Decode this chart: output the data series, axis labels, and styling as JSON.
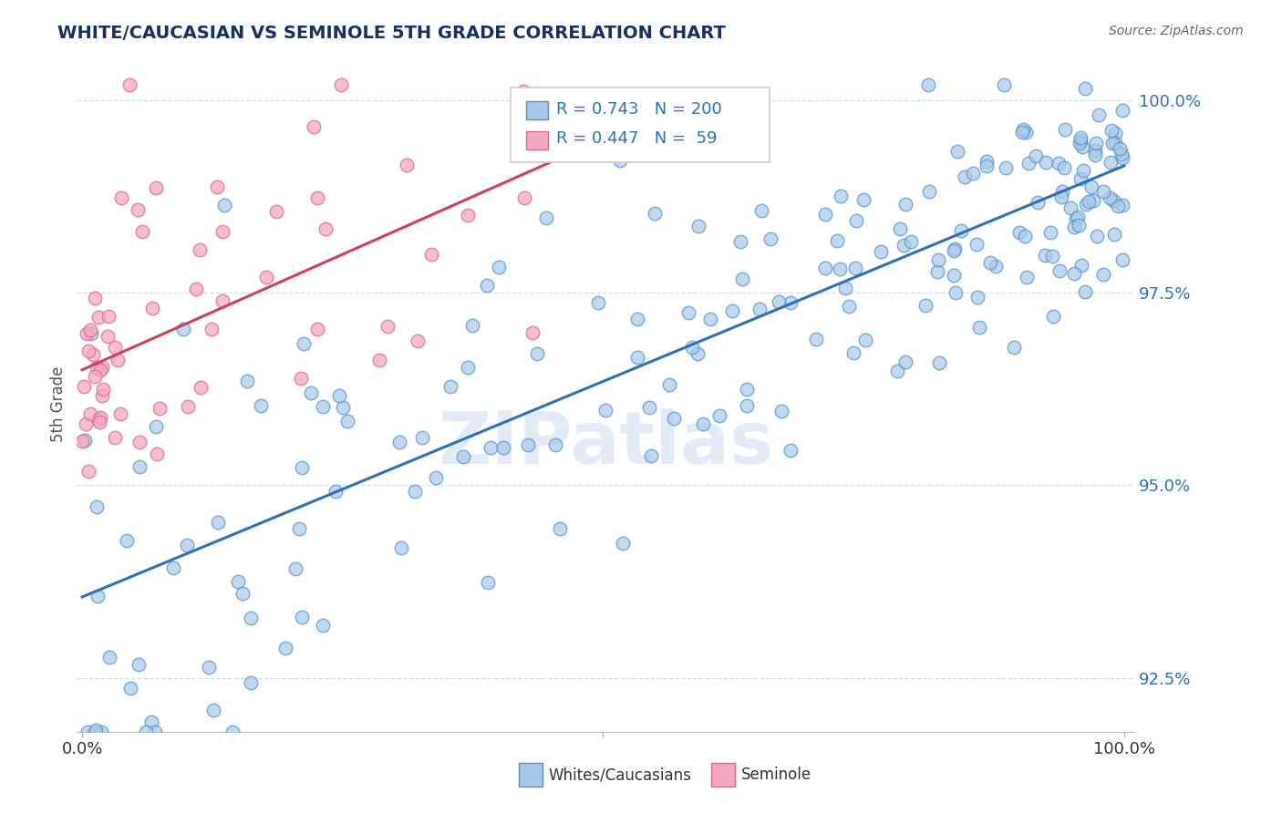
{
  "title": "WHITE/CAUCASIAN VS SEMINOLE 5TH GRADE CORRELATION CHART",
  "source": "Source: ZipAtlas.com",
  "ylabel": "5th Grade",
  "y_ticks": [
    0.925,
    0.95,
    0.975,
    1.0
  ],
  "y_tick_labels": [
    "92.5%",
    "95.0%",
    "97.5%",
    "100.0%"
  ],
  "x_ticks": [
    0.0,
    0.5,
    1.0
  ],
  "x_tick_labels": [
    "0.0%",
    "",
    "100.0%"
  ],
  "x_range": [
    0.0,
    1.0
  ],
  "y_range": [
    0.918,
    1.003
  ],
  "legend_blue_R": "0.743",
  "legend_blue_N": "200",
  "legend_pink_R": "0.447",
  "legend_pink_N": "59",
  "blue_color": "#a8c8e8",
  "pink_color": "#f4a8c0",
  "blue_edge_color": "#5090c8",
  "pink_edge_color": "#e06888",
  "line_blue_color": "#3070b8",
  "line_pink_color": "#d04060",
  "watermark": "ZIPatlas",
  "legend_label_blue": "Whites/Caucasians",
  "legend_label_pink": "Seminole",
  "blue_line_y_start": 0.9355,
  "blue_line_y_end": 0.9915,
  "pink_line_y_start": 0.965,
  "pink_line_y_end": 0.992,
  "pink_line_x_end": 0.45
}
